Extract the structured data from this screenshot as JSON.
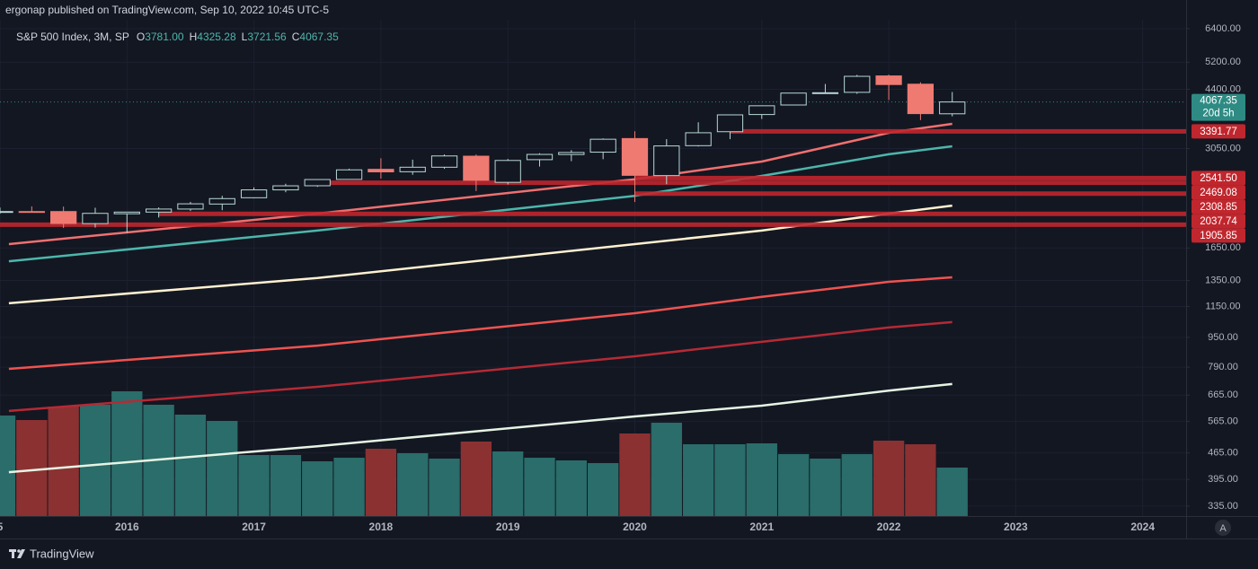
{
  "header": {
    "publisher": "ergonap published on TradingView.com, Sep 10, 2022 10:45 UTC-5"
  },
  "footer": {
    "brand": "TradingView"
  },
  "scale_button": "A",
  "chart_data": {
    "type": "candlestick",
    "symbol": "S&P 500 Index, 3M, SP",
    "ohlc": [
      {
        "key": "O",
        "text": "3781.00"
      },
      {
        "key": "H",
        "text": "4325.28"
      },
      {
        "key": "L",
        "text": "3721.56"
      },
      {
        "key": "C",
        "text": "4067.35"
      }
    ],
    "log_scale": true,
    "grid": true,
    "xlim": [
      2015,
      2024.342
    ],
    "xticks": [
      {
        "value": 2015,
        "label": "5"
      },
      2016,
      2017,
      2018,
      2019,
      2020,
      2021,
      2022,
      2023,
      2024
    ],
    "ylim": [
      315,
      6760
    ],
    "yticks": [
      {
        "value": 6400,
        "label": "6400.00"
      },
      {
        "value": 5200,
        "label": "5200.00"
      },
      {
        "value": 4400,
        "label": "4400.00"
      },
      {
        "value": 3050,
        "label": "3050.00"
      },
      {
        "value": 1650,
        "label": "1650.00"
      },
      {
        "value": 1350,
        "label": "1350.00"
      },
      {
        "value": 1150,
        "label": "1150.00"
      },
      {
        "value": 950,
        "label": "950.00"
      },
      {
        "value": 790,
        "label": "790.00"
      },
      {
        "value": 665,
        "label": "665.00"
      },
      {
        "value": 565,
        "label": "565.00"
      },
      {
        "value": 465,
        "label": "465.00"
      },
      {
        "value": 395,
        "label": "395.00"
      },
      {
        "value": 335,
        "label": "335.00"
      }
    ],
    "x": [
      2015,
      2015.25,
      2015.5,
      2015.75,
      2016,
      2016.25,
      2016.5,
      2016.75,
      2017,
      2017.25,
      2017.5,
      2017.75,
      2018,
      2018.25,
      2018.5,
      2018.75,
      2019,
      2019.25,
      2019.5,
      2019.75,
      2020,
      2020.25,
      2020.5,
      2020.75,
      2021,
      2021.25,
      2021.5,
      2021.75,
      2022,
      2022.25,
      2022.5
    ],
    "open": [
      2058,
      2067,
      2067,
      1919,
      2039,
      2060,
      2099,
      2165,
      2251,
      2363,
      2424,
      2521,
      2683,
      2643,
      2718,
      2910,
      2476,
      2848,
      2940,
      2983,
      3245,
      2581,
      3105,
      3385,
      3764,
      3992,
      4300,
      4317,
      4778,
      4540,
      3781
    ],
    "high": [
      2119,
      2134,
      2132,
      2116,
      2063,
      2120,
      2194,
      2278,
      2400,
      2454,
      2519,
      2694,
      2873,
      2848,
      2941,
      2940,
      2860,
      2964,
      3021,
      3247,
      3394,
      3233,
      3588,
      3760,
      3983,
      4302,
      4546,
      4808,
      4819,
      4593,
      4325.28
    ],
    "low": [
      2039,
      2057,
      1867,
      1872,
      1810,
      1992,
      2074,
      2084,
      2245,
      2329,
      2407,
      2520,
      2533,
      2594,
      2691,
      2346,
      2444,
      2729,
      2822,
      2856,
      2192,
      2447,
      3089,
      3233,
      3662,
      3990,
      4280,
      4278,
      4115,
      3637,
      3721.56
    ],
    "close": [
      2067,
      2063,
      1920,
      2044,
      2060,
      2099,
      2168,
      2239,
      2363,
      2423,
      2519,
      2674,
      2641,
      2718,
      2914,
      2507,
      2834,
      2942,
      2977,
      3231,
      2585,
      3100,
      3363,
      3756,
      3973,
      4297,
      4307,
      4766,
      4530,
      3785,
      4067.35
    ],
    "up_color": "#b7d8d4",
    "down_color": "#ef7a72",
    "volume": [
      112,
      107,
      122,
      124,
      139,
      124,
      113,
      106,
      68,
      68,
      61,
      65,
      75,
      70,
      64,
      83,
      72,
      65,
      62,
      59,
      92,
      104,
      80,
      80,
      81,
      69,
      64,
      69,
      84,
      80,
      54
    ],
    "volume_lim": [
      0,
      553
    ],
    "volume_up_color": "#2a6d6a",
    "volume_down_color": "#8b3131",
    "lines": [
      {
        "color": "#f07070",
        "x": [
          2015.07,
          2017.5,
          2020,
          2021,
          2022,
          2022.5
        ],
        "values": [
          1690,
          2041,
          2522,
          2815,
          3362,
          3553
        ]
      },
      {
        "color": "#4db6ac",
        "x": [
          2015.07,
          2017.5,
          2020,
          2021,
          2022,
          2022.5
        ],
        "values": [
          1520,
          1838,
          2278,
          2576,
          2944,
          3093
        ]
      },
      {
        "color": "#fff1cf",
        "x": [
          2015.07,
          2017.5,
          2020,
          2021,
          2022,
          2022.5
        ],
        "values": [
          1173,
          1371,
          1690,
          1838,
          2041,
          2144
        ]
      },
      {
        "color": "#ef5350",
        "x": [
          2015.07,
          2017.5,
          2020,
          2021,
          2022,
          2022.5
        ],
        "values": [
          782,
          903,
          1103,
          1220,
          1339,
          1377
        ]
      },
      {
        "color": "#b52a35",
        "x": [
          2015.07,
          2017.5,
          2020,
          2021,
          2022,
          2022.5
        ],
        "values": [
          603,
          700,
          845,
          924,
          1010,
          1044
        ]
      },
      {
        "color": "#e6f4e4",
        "x": [
          2015.07,
          2017.5,
          2020,
          2021,
          2022,
          2022.5
        ],
        "values": [
          413,
          485,
          583,
          623,
          684,
          712
        ]
      }
    ],
    "levels": [
      {
        "value": 3391.77,
        "label": "3391.77",
        "from": 2020.75
      },
      {
        "value": 2541.5,
        "label": "2541.50",
        "from": 2020
      },
      {
        "value": 2469.08,
        "label": "2469.08",
        "from": 2017.5
      },
      {
        "value": 2308.85,
        "label": "2308.85",
        "from": 2020
      },
      {
        "value": 2037.74,
        "label": "2037.74",
        "from": 2016.25
      },
      {
        "value": 1905.85,
        "label": "1905.85",
        "from": 2015
      }
    ],
    "level_color": "#c0262d",
    "last_price": 4067.35,
    "countdown": "20d 5h",
    "last_price_color": "#2e8b84"
  }
}
